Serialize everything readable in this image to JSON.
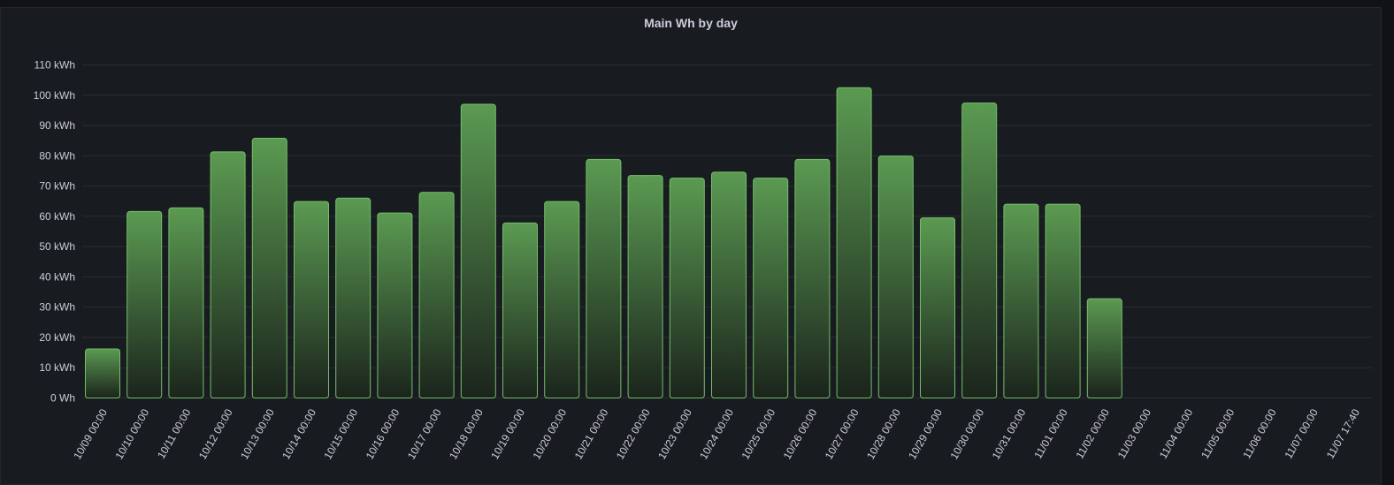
{
  "panel": {
    "title": "Main Wh by day"
  },
  "colors": {
    "bar_stroke": "#73bf69",
    "bar_fill_top": "#5b9a52",
    "bar_fill_bottom": "#1b241c",
    "grid": "#2a2d33",
    "text": "#ccccdc",
    "background": "#181b1f"
  },
  "chart_data": {
    "type": "bar",
    "title": "Main Wh by day",
    "unit": "kWh",
    "ylim": [
      0,
      110
    ],
    "yticks": [
      0,
      10,
      20,
      30,
      40,
      50,
      60,
      70,
      80,
      90,
      100,
      110
    ],
    "ytick_labels": [
      "0 Wh",
      "10 kWh",
      "20 kWh",
      "30 kWh",
      "40 kWh",
      "50 kWh",
      "60 kWh",
      "70 kWh",
      "80 kWh",
      "90 kWh",
      "100 kWh",
      "110 kWh"
    ],
    "grid": true,
    "categories": [
      "10/09 00:00",
      "10/10 00:00",
      "10/11 00:00",
      "10/12 00:00",
      "10/13 00:00",
      "10/14 00:00",
      "10/15 00:00",
      "10/16 00:00",
      "10/17 00:00",
      "10/18 00:00",
      "10/19 00:00",
      "10/20 00:00",
      "10/21 00:00",
      "10/22 00:00",
      "10/23 00:00",
      "10/24 00:00",
      "10/25 00:00",
      "10/26 00:00",
      "10/27 00:00",
      "10/28 00:00",
      "10/29 00:00",
      "10/30 00:00",
      "10/31 00:00",
      "11/01 00:00",
      "11/02 00:00",
      "11/03 00:00",
      "11/04 00:00",
      "11/05 00:00",
      "11/06 00:00",
      "11/07 00:00",
      "11/07 17:40"
    ],
    "values": [
      16.2,
      61.6,
      62.8,
      81.3,
      85.8,
      64.9,
      66.0,
      61.1,
      67.9,
      97.0,
      57.8,
      64.9,
      78.8,
      73.5,
      72.6,
      74.6,
      72.6,
      78.8,
      102.5,
      79.9,
      59.5,
      97.4,
      64.0,
      64.0,
      32.8,
      null,
      null,
      null,
      null,
      null,
      null
    ]
  }
}
